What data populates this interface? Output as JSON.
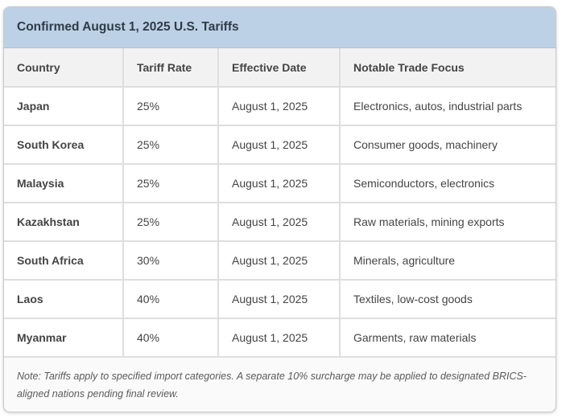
{
  "title": "Confirmed August 1, 2025 U.S. Tariffs",
  "columns": [
    "Country",
    "Tariff Rate",
    "Effective Date",
    "Notable Trade Focus"
  ],
  "rows": [
    {
      "country": "Japan",
      "rate": "25%",
      "date": "August 1, 2025",
      "focus": "Electronics, autos, industrial parts"
    },
    {
      "country": "South Korea",
      "rate": "25%",
      "date": "August 1, 2025",
      "focus": "Consumer goods, machinery"
    },
    {
      "country": "Malaysia",
      "rate": "25%",
      "date": "August 1, 2025",
      "focus": "Semiconductors, electronics"
    },
    {
      "country": "Kazakhstan",
      "rate": "25%",
      "date": "August 1, 2025",
      "focus": "Raw materials, mining exports"
    },
    {
      "country": "South Africa",
      "rate": "30%",
      "date": "August 1, 2025",
      "focus": "Minerals, agriculture"
    },
    {
      "country": "Laos",
      "rate": "40%",
      "date": "August 1, 2025",
      "focus": "Textiles, low-cost goods"
    },
    {
      "country": "Myanmar",
      "rate": "40%",
      "date": "August 1, 2025",
      "focus": "Garments, raw materials"
    }
  ],
  "note": "Note: Tariffs apply to specified import categories. A separate 10% surcharge may be applied to designated BRICS-aligned nations pending final review.",
  "colors": {
    "header_bg": "#bcd1e6",
    "table_header_bg": "#f2f2f2",
    "border": "#dedede",
    "text": "#444444"
  }
}
